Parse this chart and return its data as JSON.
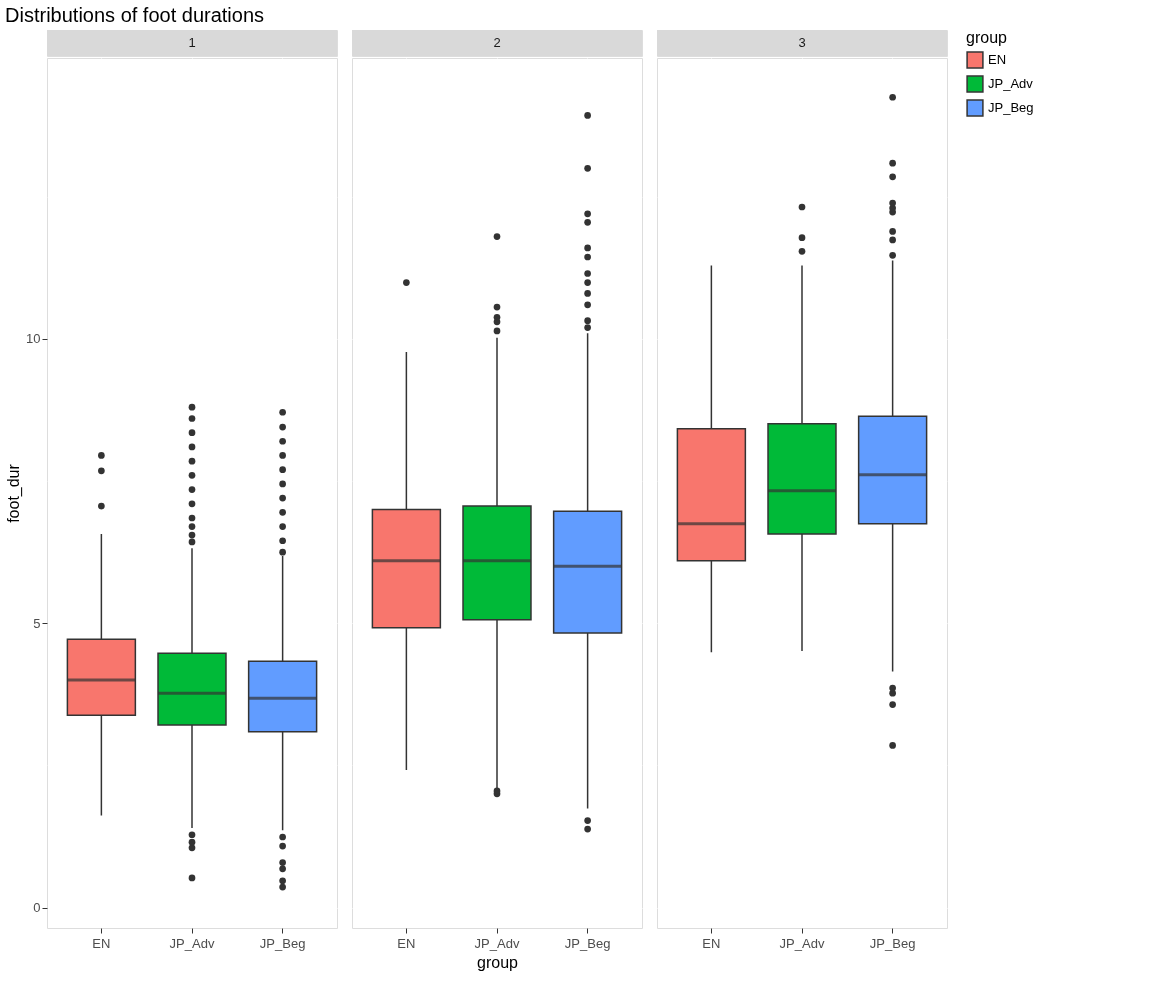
{
  "chart_data": [
    {
      "type": "box",
      "title": "Distributions of foot durations",
      "subtitle": "1",
      "ylabel": "foot_dur",
      "categories": [
        "EN",
        "JP_Adv",
        "JP_Beg"
      ],
      "ylim": [
        -0.36,
        14.94
      ],
      "yticks": [
        0,
        {
          "value": 2.5,
          "label": null
        },
        5,
        {
          "value": 7.5,
          "label": null
        },
        10,
        {
          "value": 12.5,
          "label": null
        }
      ],
      "grid": true,
      "legend": false,
      "series": [
        {
          "color": "#f8766d",
          "boxes": [
            {
              "low": 1.62,
              "q1": 3.38,
              "median": 4.0,
              "q3": 4.72,
              "high": 6.57,
              "outliers": [
                7.06,
                7.68,
                7.95
              ]
            },
            null,
            null
          ]
        },
        {
          "color": "#00ba38",
          "boxes": [
            null,
            {
              "low": 1.4,
              "q1": 3.21,
              "median": 3.77,
              "q3": 4.47,
              "high": 6.32,
              "outliers": [
                0.52,
                1.05,
                1.15,
                1.28,
                6.43,
                6.55,
                6.7,
                6.85,
                7.1,
                7.35,
                7.6,
                7.85,
                8.1,
                8.35,
                8.6,
                8.8
              ]
            },
            null
          ]
        },
        {
          "color": "#619cff",
          "boxes": [
            null,
            null,
            {
              "low": 1.36,
              "q1": 3.09,
              "median": 3.68,
              "q3": 4.33,
              "high": 6.18,
              "outliers": [
                0.36,
                0.47,
                0.68,
                0.79,
                1.08,
                1.24,
                6.25,
                6.45,
                6.7,
                6.95,
                7.2,
                7.45,
                7.7,
                7.95,
                8.2,
                8.45,
                8.71
              ]
            }
          ]
        }
      ]
    },
    {
      "type": "box",
      "subtitle": "2",
      "xlabel": "group",
      "categories": [
        "EN",
        "JP_Adv",
        "JP_Beg"
      ],
      "ylim": [
        -0.36,
        14.94
      ],
      "yticks": [
        0,
        {
          "value": 2.5,
          "label": null
        },
        5,
        {
          "value": 7.5,
          "label": null
        },
        10,
        {
          "value": 12.5,
          "label": null
        }
      ],
      "grid": true,
      "legend": false,
      "tick_labels": "x",
      "series": [
        {
          "color": "#f8766d",
          "boxes": [
            {
              "low": 2.42,
              "q1": 4.92,
              "median": 6.1,
              "q3": 7.0,
              "high": 9.77,
              "outliers": [
                10.99
              ]
            },
            null,
            null
          ]
        },
        {
          "color": "#00ba38",
          "boxes": [
            null,
            {
              "low": 2.1,
              "q1": 5.06,
              "median": 6.1,
              "q3": 7.06,
              "high": 10.02,
              "outliers": [
                2.0,
                2.05,
                10.14,
                10.3,
                10.38,
                10.56,
                11.8
              ]
            },
            null
          ]
        },
        {
          "color": "#619cff",
          "boxes": [
            null,
            null,
            {
              "low": 1.74,
              "q1": 4.83,
              "median": 6.0,
              "q3": 6.97,
              "high": 10.1,
              "outliers": [
                1.38,
                1.53,
                10.2,
                10.32,
                10.6,
                10.8,
                10.99,
                11.15,
                11.44,
                11.6,
                12.05,
                12.2,
                13.0,
                13.93
              ]
            }
          ]
        }
      ]
    },
    {
      "type": "box",
      "subtitle": "3",
      "categories": [
        "EN",
        "JP_Adv",
        "JP_Beg"
      ],
      "ylim": [
        -0.36,
        14.94
      ],
      "yticks": [
        0,
        {
          "value": 2.5,
          "label": null
        },
        5,
        {
          "value": 7.5,
          "label": null
        },
        10,
        {
          "value": 12.5,
          "label": null
        }
      ],
      "grid": true,
      "legend": "right",
      "legend_title": "group",
      "tick_labels": "x",
      "series": [
        {
          "name": "EN",
          "color": "#f8766d",
          "boxes": [
            {
              "low": 4.49,
              "q1": 6.1,
              "median": 6.75,
              "q3": 8.42,
              "high": 11.29
            },
            null,
            null
          ]
        },
        {
          "name": "JP_Adv",
          "color": "#00ba38",
          "boxes": [
            null,
            {
              "low": 4.51,
              "q1": 6.57,
              "median": 7.33,
              "q3": 8.51,
              "high": 11.29,
              "outliers": [
                11.54,
                11.78,
                12.32
              ]
            },
            null
          ]
        },
        {
          "name": "JP_Beg",
          "color": "#619cff",
          "boxes": [
            null,
            null,
            {
              "low": 4.15,
              "q1": 6.75,
              "median": 7.61,
              "q3": 8.64,
              "high": 11.38,
              "outliers": [
                2.85,
                3.57,
                3.77,
                3.86,
                11.47,
                11.74,
                11.89,
                12.23,
                12.3,
                12.39,
                12.85,
                13.09,
                14.25
              ]
            }
          ]
        }
      ]
    }
  ]
}
